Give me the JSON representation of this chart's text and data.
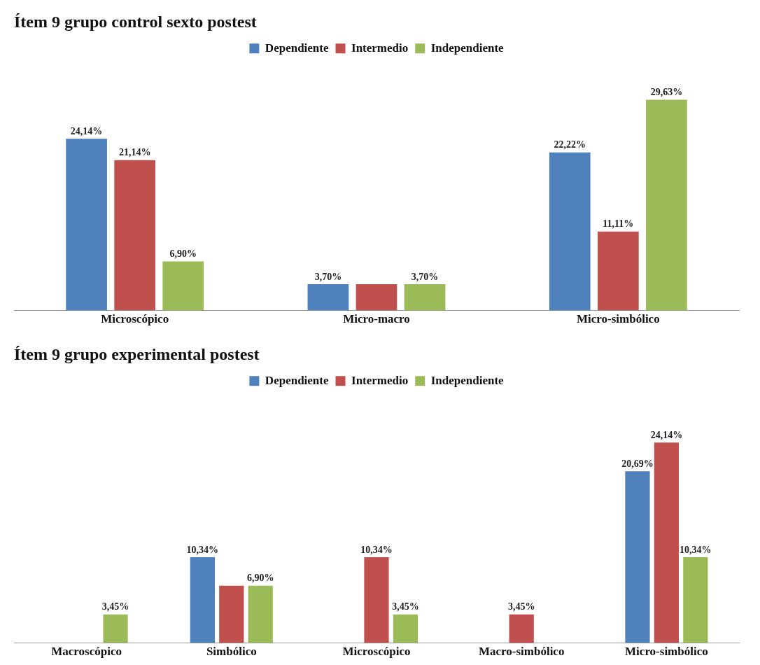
{
  "chart_data": [
    {
      "type": "bar",
      "title": "Ítem 9 grupo control sexto postest",
      "categories": [
        "Microscópico",
        "Micro-macro",
        "Micro-simbólico"
      ],
      "legend": "top",
      "grid": false,
      "series": [
        {
          "name": "Dependiente",
          "color": "#4f81bd",
          "values": [
            24.14,
            3.7,
            22.22
          ],
          "value_labels": [
            "24,14%",
            "3,70%",
            "22,22%"
          ]
        },
        {
          "name": "Intermedio",
          "color": "#c0504d",
          "values": [
            21.14,
            3.7,
            11.11
          ],
          "value_labels": [
            "21,14%",
            null,
            "11,11%"
          ]
        },
        {
          "name": "Independiente",
          "color": "#9bbb59",
          "values": [
            6.9,
            3.7,
            29.63
          ],
          "value_labels": [
            "6,90%",
            "3,70%",
            "29,63%"
          ]
        }
      ]
    },
    {
      "type": "bar",
      "title": "Ítem 9 grupo experimental postest",
      "categories": [
        "Macroscópico",
        "Simbólico",
        "Microscópico",
        "Macro-simbólico",
        "Micro-simbólico"
      ],
      "legend": "top",
      "grid": false,
      "series": [
        {
          "name": "Dependiente",
          "color": "#4f81bd",
          "values": [
            null,
            10.34,
            null,
            null,
            20.69
          ],
          "value_labels": [
            null,
            "10,34%",
            null,
            null,
            "20,69%"
          ]
        },
        {
          "name": "Intermedio",
          "color": "#c0504d",
          "values": [
            null,
            6.9,
            10.34,
            3.45,
            24.14
          ],
          "value_labels": [
            null,
            null,
            "10,34%",
            "3,45%",
            "24,14%"
          ]
        },
        {
          "name": "Independiente",
          "color": "#9bbb59",
          "values": [
            3.45,
            6.9,
            3.45,
            null,
            10.34
          ],
          "value_labels": [
            "3,45%",
            "6,90%",
            "3,45%",
            null,
            "10,34%"
          ]
        }
      ]
    }
  ]
}
